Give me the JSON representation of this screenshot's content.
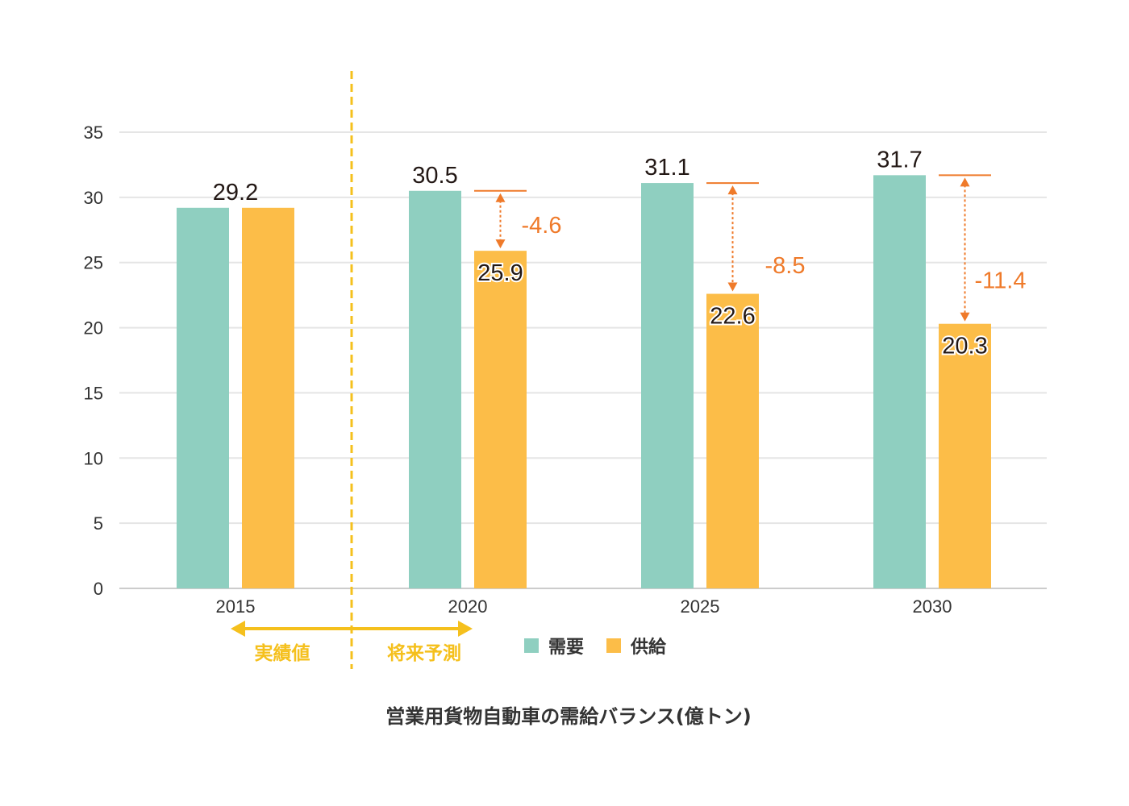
{
  "chart_data": {
    "type": "bar",
    "caption": "営業用貨物自動車の需給バランス(億トン)",
    "categories": [
      "2015",
      "2020",
      "2025",
      "2030"
    ],
    "series": [
      {
        "name": "需要",
        "values": [
          29.2,
          30.5,
          31.1,
          31.7
        ]
      },
      {
        "name": "供給",
        "values": [
          29.2,
          25.9,
          22.6,
          20.3
        ]
      }
    ],
    "bar_labels": {
      "需要": [
        "29.2",
        "30.5",
        "31.1",
        "31.7"
      ],
      "供給": [
        "",
        "25.9",
        "22.6",
        "20.3"
      ]
    },
    "gaps": [
      {
        "category": "2020",
        "label": "-4.6"
      },
      {
        "category": "2025",
        "label": "-8.5"
      },
      {
        "category": "2030",
        "label": "-11.4"
      }
    ],
    "periods": {
      "actual": "実績値",
      "forecast": "将来予測"
    },
    "ylim": [
      0,
      35
    ],
    "yticks": [
      "0",
      "5",
      "10",
      "15",
      "20",
      "25",
      "30",
      "35"
    ],
    "grid": true,
    "legend_position": "bottom",
    "colors": {
      "需要": "#8fcfc0",
      "供給": "#fcbd48",
      "gap": "#ef7a2a",
      "divider": "#f5c01d",
      "grid": "#e5e5e5"
    }
  }
}
